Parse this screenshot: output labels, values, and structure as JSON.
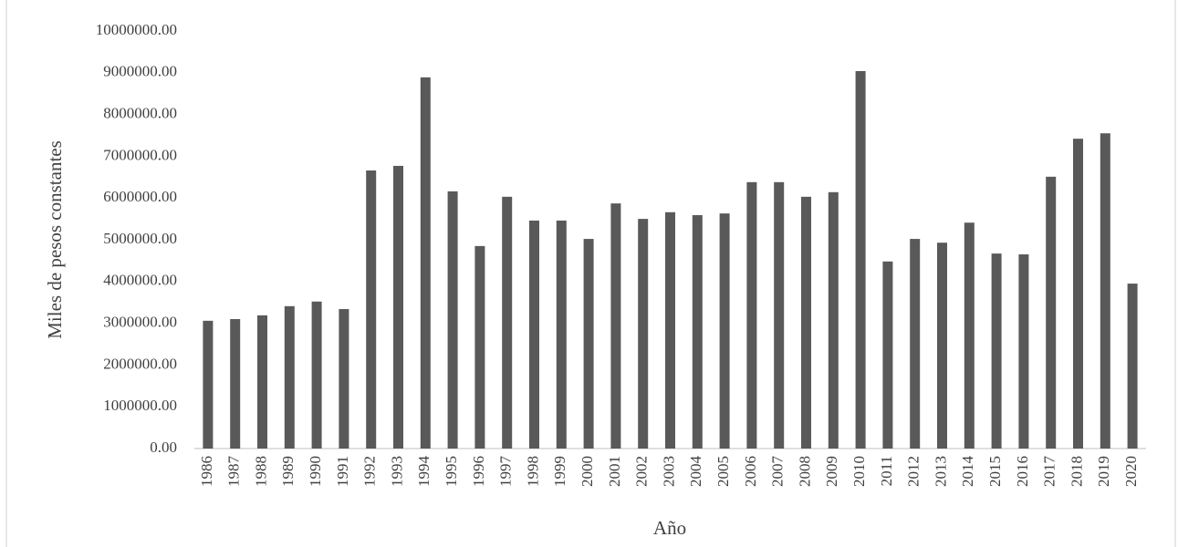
{
  "chart_data": {
    "type": "bar",
    "x_label": "Año",
    "y_label": "Miles de pesos constantes",
    "categories": [
      "1986",
      "1987",
      "1988",
      "1989",
      "1990",
      "1991",
      "1992",
      "1993",
      "1994",
      "1995",
      "1996",
      "1997",
      "1998",
      "1999",
      "2000",
      "2001",
      "2002",
      "2003",
      "2004",
      "2005",
      "2006",
      "2007",
      "2008",
      "2009",
      "2010",
      "2011",
      "2012",
      "2013",
      "2014",
      "2015",
      "2016",
      "2017",
      "2018",
      "2019",
      "2020"
    ],
    "values": [
      3060000,
      3100000,
      3190000,
      3410000,
      3520000,
      3340000,
      6660000,
      6770000,
      8890000,
      6160000,
      4850000,
      6030000,
      5460000,
      5460000,
      5020000,
      5870000,
      5500000,
      5660000,
      5590000,
      5630000,
      6380000,
      6380000,
      6030000,
      6140000,
      9040000,
      4480000,
      5020000,
      4930000,
      5410000,
      4670000,
      4650000,
      6510000,
      7420000,
      7550000,
      3950000
    ],
    "color": "#595959",
    "ylim": [
      0,
      10000000
    ],
    "yticks": [
      {
        "value": 0,
        "label": "0.00"
      },
      {
        "value": 1000000,
        "label": "1000000.00"
      },
      {
        "value": 2000000,
        "label": "2000000.00"
      },
      {
        "value": 3000000,
        "label": "3000000.00"
      },
      {
        "value": 4000000,
        "label": "4000000.00"
      },
      {
        "value": 5000000,
        "label": "5000000.00"
      },
      {
        "value": 6000000,
        "label": "6000000.00"
      },
      {
        "value": 7000000,
        "label": "7000000.00"
      },
      {
        "value": 8000000,
        "label": "8000000.00"
      },
      {
        "value": 9000000,
        "label": "9000000.00"
      },
      {
        "value": 10000000,
        "label": "10000000.00"
      }
    ],
    "grid": false
  }
}
